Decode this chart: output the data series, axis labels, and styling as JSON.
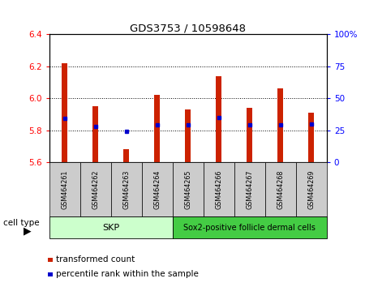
{
  "title": "GDS3753 / 10598648",
  "samples": [
    "GSM464261",
    "GSM464262",
    "GSM464263",
    "GSM464264",
    "GSM464265",
    "GSM464266",
    "GSM464267",
    "GSM464268",
    "GSM464269"
  ],
  "transformed_counts": [
    6.22,
    5.95,
    5.68,
    6.02,
    5.93,
    6.14,
    5.94,
    6.06,
    5.91
  ],
  "percentile_ranks": [
    34,
    28,
    24,
    29,
    29,
    35,
    29,
    29,
    30
  ],
  "ylim_left": [
    5.6,
    6.4
  ],
  "ylim_right": [
    0,
    100
  ],
  "yticks_left": [
    5.6,
    5.8,
    6.0,
    6.2,
    6.4
  ],
  "yticks_right": [
    0,
    25,
    50,
    75,
    100
  ],
  "bar_color": "#cc2200",
  "dot_color": "#0000cc",
  "bar_bottom": 5.6,
  "cell_type_groups": [
    {
      "label": "SKP",
      "start": 0,
      "end": 3,
      "color": "#ccffcc"
    },
    {
      "label": "Sox2-positive follicle dermal cells",
      "start": 4,
      "end": 8,
      "color": "#44cc44"
    }
  ],
  "cell_type_label": "cell type",
  "legend_items": [
    {
      "label": "transformed count",
      "color": "#cc2200"
    },
    {
      "label": "percentile rank within the sample",
      "color": "#0000cc"
    }
  ],
  "bg_color": "#ffffff",
  "bar_width": 0.18,
  "label_bg_color": "#cccccc",
  "grid_dotted_ticks": [
    5.8,
    6.0,
    6.2
  ]
}
